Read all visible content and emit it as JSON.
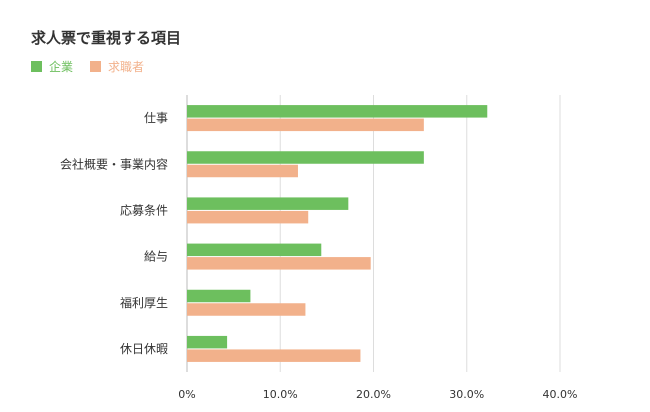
{
  "chart_data": {
    "type": "bar",
    "orientation": "horizontal",
    "title": "求人票で重視する項目",
    "categories": [
      "仕事",
      "会社概要・事業内容",
      "応募条件",
      "給与",
      "福利厚生",
      "休日休暇"
    ],
    "series": [
      {
        "name": "企業",
        "color": "#6dbf5e",
        "values": [
          32.2,
          25.4,
          17.3,
          14.4,
          6.8,
          4.3
        ]
      },
      {
        "name": "求職者",
        "color": "#f2b18b",
        "values": [
          25.4,
          11.9,
          13.0,
          19.7,
          12.7,
          18.6
        ]
      }
    ],
    "xlim": [
      0,
      40
    ],
    "x_ticks": [
      "0%",
      "10.0%",
      "20.0%",
      "30.0%",
      "40.0%"
    ],
    "legend_position": "top-left",
    "grid": true,
    "xlabel": "",
    "ylabel": ""
  }
}
